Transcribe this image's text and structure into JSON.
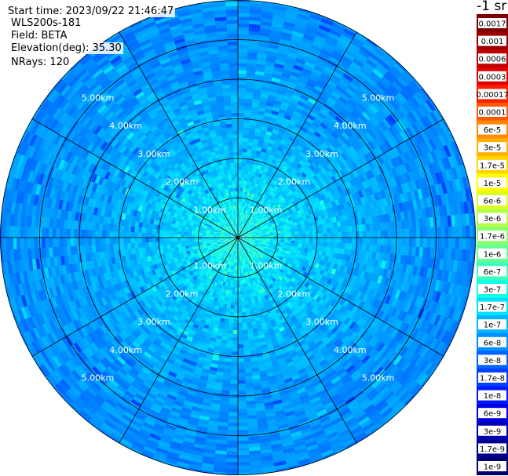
{
  "header": {
    "start_time": "Start time: 2023/09/22 21:46:47",
    "station": "WLS200s-181",
    "field": "Field: BETA",
    "elevation": "Elevation(deg): 35.30",
    "nrays": "NRays: 120"
  },
  "colorbar": {
    "unit_label": "-1 sr",
    "ticks": [
      "0.0017",
      "0.001",
      "0.0006",
      "0.0003",
      "0.00017",
      "0.0001",
      "6e-5",
      "3e-5",
      "1.7e-5",
      "1e-5",
      "6e-6",
      "3e-6",
      "1.7e-6",
      "1e-6",
      "6e-7",
      "3e-7",
      "1.7e-7",
      "1e-7",
      "6e-8",
      "3e-8",
      "1.7e-8",
      "1e-8",
      "6e-9",
      "3e-9",
      "1.7e-9",
      "1e-9"
    ],
    "colors": [
      "#800000",
      "#9a0000",
      "#bf0000",
      "#e00000",
      "#ff2000",
      "#ff5a00",
      "#ff8a00",
      "#ffb000",
      "#ffd400",
      "#ffff00",
      "#dcff1e",
      "#b4ff46",
      "#8cff6e",
      "#64ff96",
      "#3cffbe",
      "#14ffe6",
      "#00e0ff",
      "#00b4ff",
      "#0090ff",
      "#0064ff",
      "#0040ff",
      "#0018ff",
      "#0000e0",
      "#0000b4",
      "#000090",
      "#000070"
    ]
  },
  "chart_data": {
    "type": "heatmap",
    "projection": "polar (PPI scan)",
    "field": "BETA",
    "elevation_deg": 35.3,
    "n_rays": 120,
    "range_unit": "km",
    "range_max_km": 6.0,
    "range_rings_km": [
      1,
      2,
      3,
      4,
      5
    ],
    "range_ring_labels": [
      "1.00km",
      "2.00km",
      "3.00km",
      "4.00km",
      "5.00km"
    ],
    "spokes_deg_from_north": [
      0,
      30,
      60,
      90,
      120,
      150,
      180,
      210,
      240,
      270,
      300,
      330
    ],
    "value_profile_by_range_km": [
      {
        "range_km": 0.5,
        "log10_beta": -6.3
      },
      {
        "range_km": 1.0,
        "log10_beta": -6.5
      },
      {
        "range_km": 2.0,
        "log10_beta": -6.8
      },
      {
        "range_km": 3.0,
        "log10_beta": -7.0
      },
      {
        "range_km": 4.0,
        "log10_beta": -7.2
      },
      {
        "range_km": 5.0,
        "log10_beta": -7.3
      },
      {
        "range_km": 6.0,
        "log10_beta": -7.4
      }
    ],
    "colorbar_range": [
      1e-09,
      0.0017
    ],
    "colorbar_scale": "log"
  }
}
